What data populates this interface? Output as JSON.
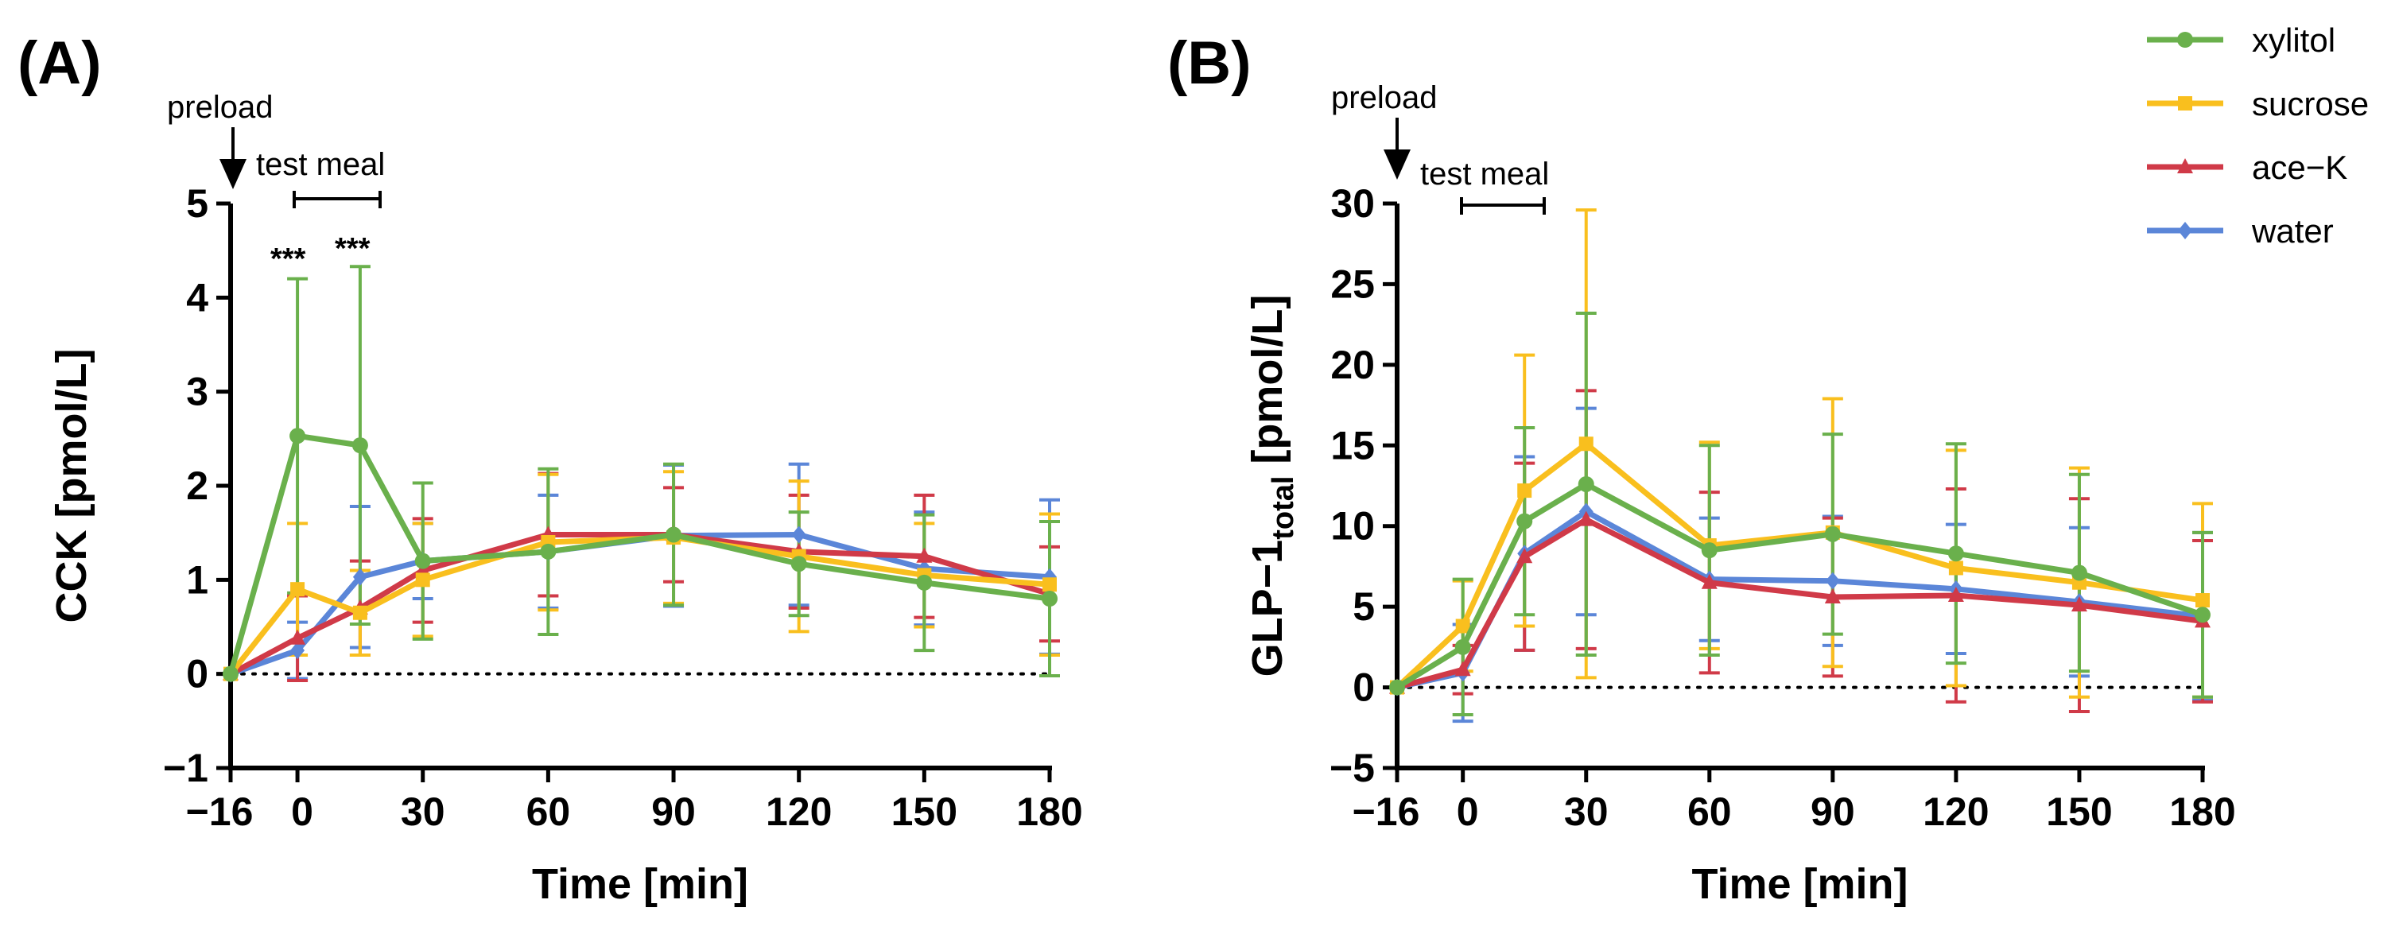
{
  "figure_labels": {
    "a": "(A)",
    "b": "(B)"
  },
  "annotations": {
    "preload": "preload",
    "test_meal": "test meal",
    "significance": [
      "***",
      "***"
    ]
  },
  "colors": {
    "xylitol": "#6ab04c",
    "sucrose": "#f9bf1e",
    "ace_k": "#d03a48",
    "water": "#5b86d8",
    "axis": "#000000"
  },
  "legend": [
    {
      "name": "xylitol",
      "color": "#6ab04c",
      "marker": "circle"
    },
    {
      "name": "sucrose",
      "color": "#f9bf1e",
      "marker": "square"
    },
    {
      "name": "ace−K",
      "color": "#d03a48",
      "marker": "triangle"
    },
    {
      "name": "water",
      "color": "#5b86d8",
      "marker": "diamond"
    }
  ],
  "chart_data": [
    {
      "type": "line",
      "panel": "A",
      "title": "",
      "xlabel": "Time [min]",
      "ylabel": "CCK [pmol/L]",
      "x": [
        -16,
        0,
        15,
        30,
        60,
        90,
        120,
        150,
        180
      ],
      "xticks": [
        -16,
        0,
        30,
        60,
        90,
        120,
        150,
        180
      ],
      "xtick_labels": [
        "−16",
        "0",
        "30",
        "60",
        "90",
        "120",
        "150",
        "180"
      ],
      "xlim": [
        -16,
        180
      ],
      "ylim": [
        -1,
        5
      ],
      "yticks": [
        -1,
        0,
        1,
        2,
        3,
        4,
        5
      ],
      "ytick_labels": [
        "−1",
        "0",
        "1",
        "2",
        "3",
        "4",
        "5"
      ],
      "baseline": 0,
      "test_meal_range": [
        0,
        20
      ],
      "significance_x": [
        0,
        15
      ],
      "series": [
        {
          "name": "xylitol",
          "values": [
            0,
            2.53,
            2.43,
            1.2,
            1.3,
            1.48,
            1.17,
            0.97,
            0.8
          ],
          "errors": [
            0,
            1.67,
            1.9,
            0.83,
            0.88,
            0.75,
            0.55,
            0.72,
            0.82
          ]
        },
        {
          "name": "sucrose",
          "values": [
            0,
            0.9,
            0.65,
            1.0,
            1.4,
            1.45,
            1.25,
            1.05,
            0.95
          ],
          "errors": [
            0,
            0.7,
            0.45,
            0.6,
            0.72,
            0.7,
            0.8,
            0.55,
            0.75
          ]
        },
        {
          "name": "ace−K",
          "values": [
            0,
            0.38,
            0.7,
            1.1,
            1.48,
            1.48,
            1.3,
            1.25,
            0.85
          ],
          "errors": [
            0,
            0.45,
            0.5,
            0.55,
            0.65,
            0.5,
            0.6,
            0.65,
            0.5
          ]
        },
        {
          "name": "water",
          "values": [
            0,
            0.25,
            1.03,
            1.2,
            1.3,
            1.47,
            1.48,
            1.12,
            1.03
          ],
          "errors": [
            0,
            0.3,
            0.75,
            0.4,
            0.6,
            0.75,
            0.75,
            0.6,
            0.82
          ]
        }
      ]
    },
    {
      "type": "line",
      "panel": "B",
      "title": "",
      "xlabel": "Time [min]",
      "ylabel_main": "GLP−1",
      "ylabel_sub": "total",
      "ylabel_unit": " [pmol/L]",
      "x": [
        -16,
        0,
        15,
        30,
        60,
        90,
        120,
        150,
        180
      ],
      "xticks": [
        -16,
        0,
        30,
        60,
        90,
        120,
        150,
        180
      ],
      "xtick_labels": [
        "−16",
        "0",
        "30",
        "60",
        "90",
        "120",
        "150",
        "180"
      ],
      "xlim": [
        -16,
        180
      ],
      "ylim": [
        -5,
        30
      ],
      "yticks": [
        -5,
        0,
        5,
        10,
        15,
        20,
        25,
        30
      ],
      "ytick_labels": [
        "−5",
        "0",
        "5",
        "10",
        "15",
        "20",
        "25",
        "30"
      ],
      "baseline": 0,
      "test_meal_range": [
        0,
        20
      ],
      "series": [
        {
          "name": "xylitol",
          "values": [
            0,
            2.5,
            10.3,
            12.6,
            8.5,
            9.5,
            8.3,
            7.1,
            4.5
          ],
          "errors": [
            0,
            4.2,
            5.8,
            10.6,
            6.5,
            6.2,
            6.8,
            6.1,
            5.1
          ]
        },
        {
          "name": "sucrose",
          "values": [
            0,
            3.8,
            12.2,
            15.1,
            8.8,
            9.6,
            7.4,
            6.5,
            5.4
          ],
          "errors": [
            0,
            2.8,
            8.4,
            14.5,
            6.4,
            8.3,
            7.3,
            7.1,
            6.0
          ]
        },
        {
          "name": "ace−K",
          "values": [
            0,
            1.1,
            8.1,
            10.4,
            6.5,
            5.6,
            5.7,
            5.1,
            4.1
          ],
          "errors": [
            0,
            1.5,
            5.8,
            8.0,
            5.6,
            4.9,
            6.6,
            6.6,
            5.0
          ]
        },
        {
          "name": "water",
          "values": [
            0,
            0.9,
            8.3,
            10.9,
            6.7,
            6.6,
            6.1,
            5.3,
            4.4
          ],
          "errors": [
            0,
            3.0,
            6.0,
            6.4,
            3.8,
            4.0,
            4.0,
            4.6,
            5.2
          ]
        }
      ]
    }
  ]
}
